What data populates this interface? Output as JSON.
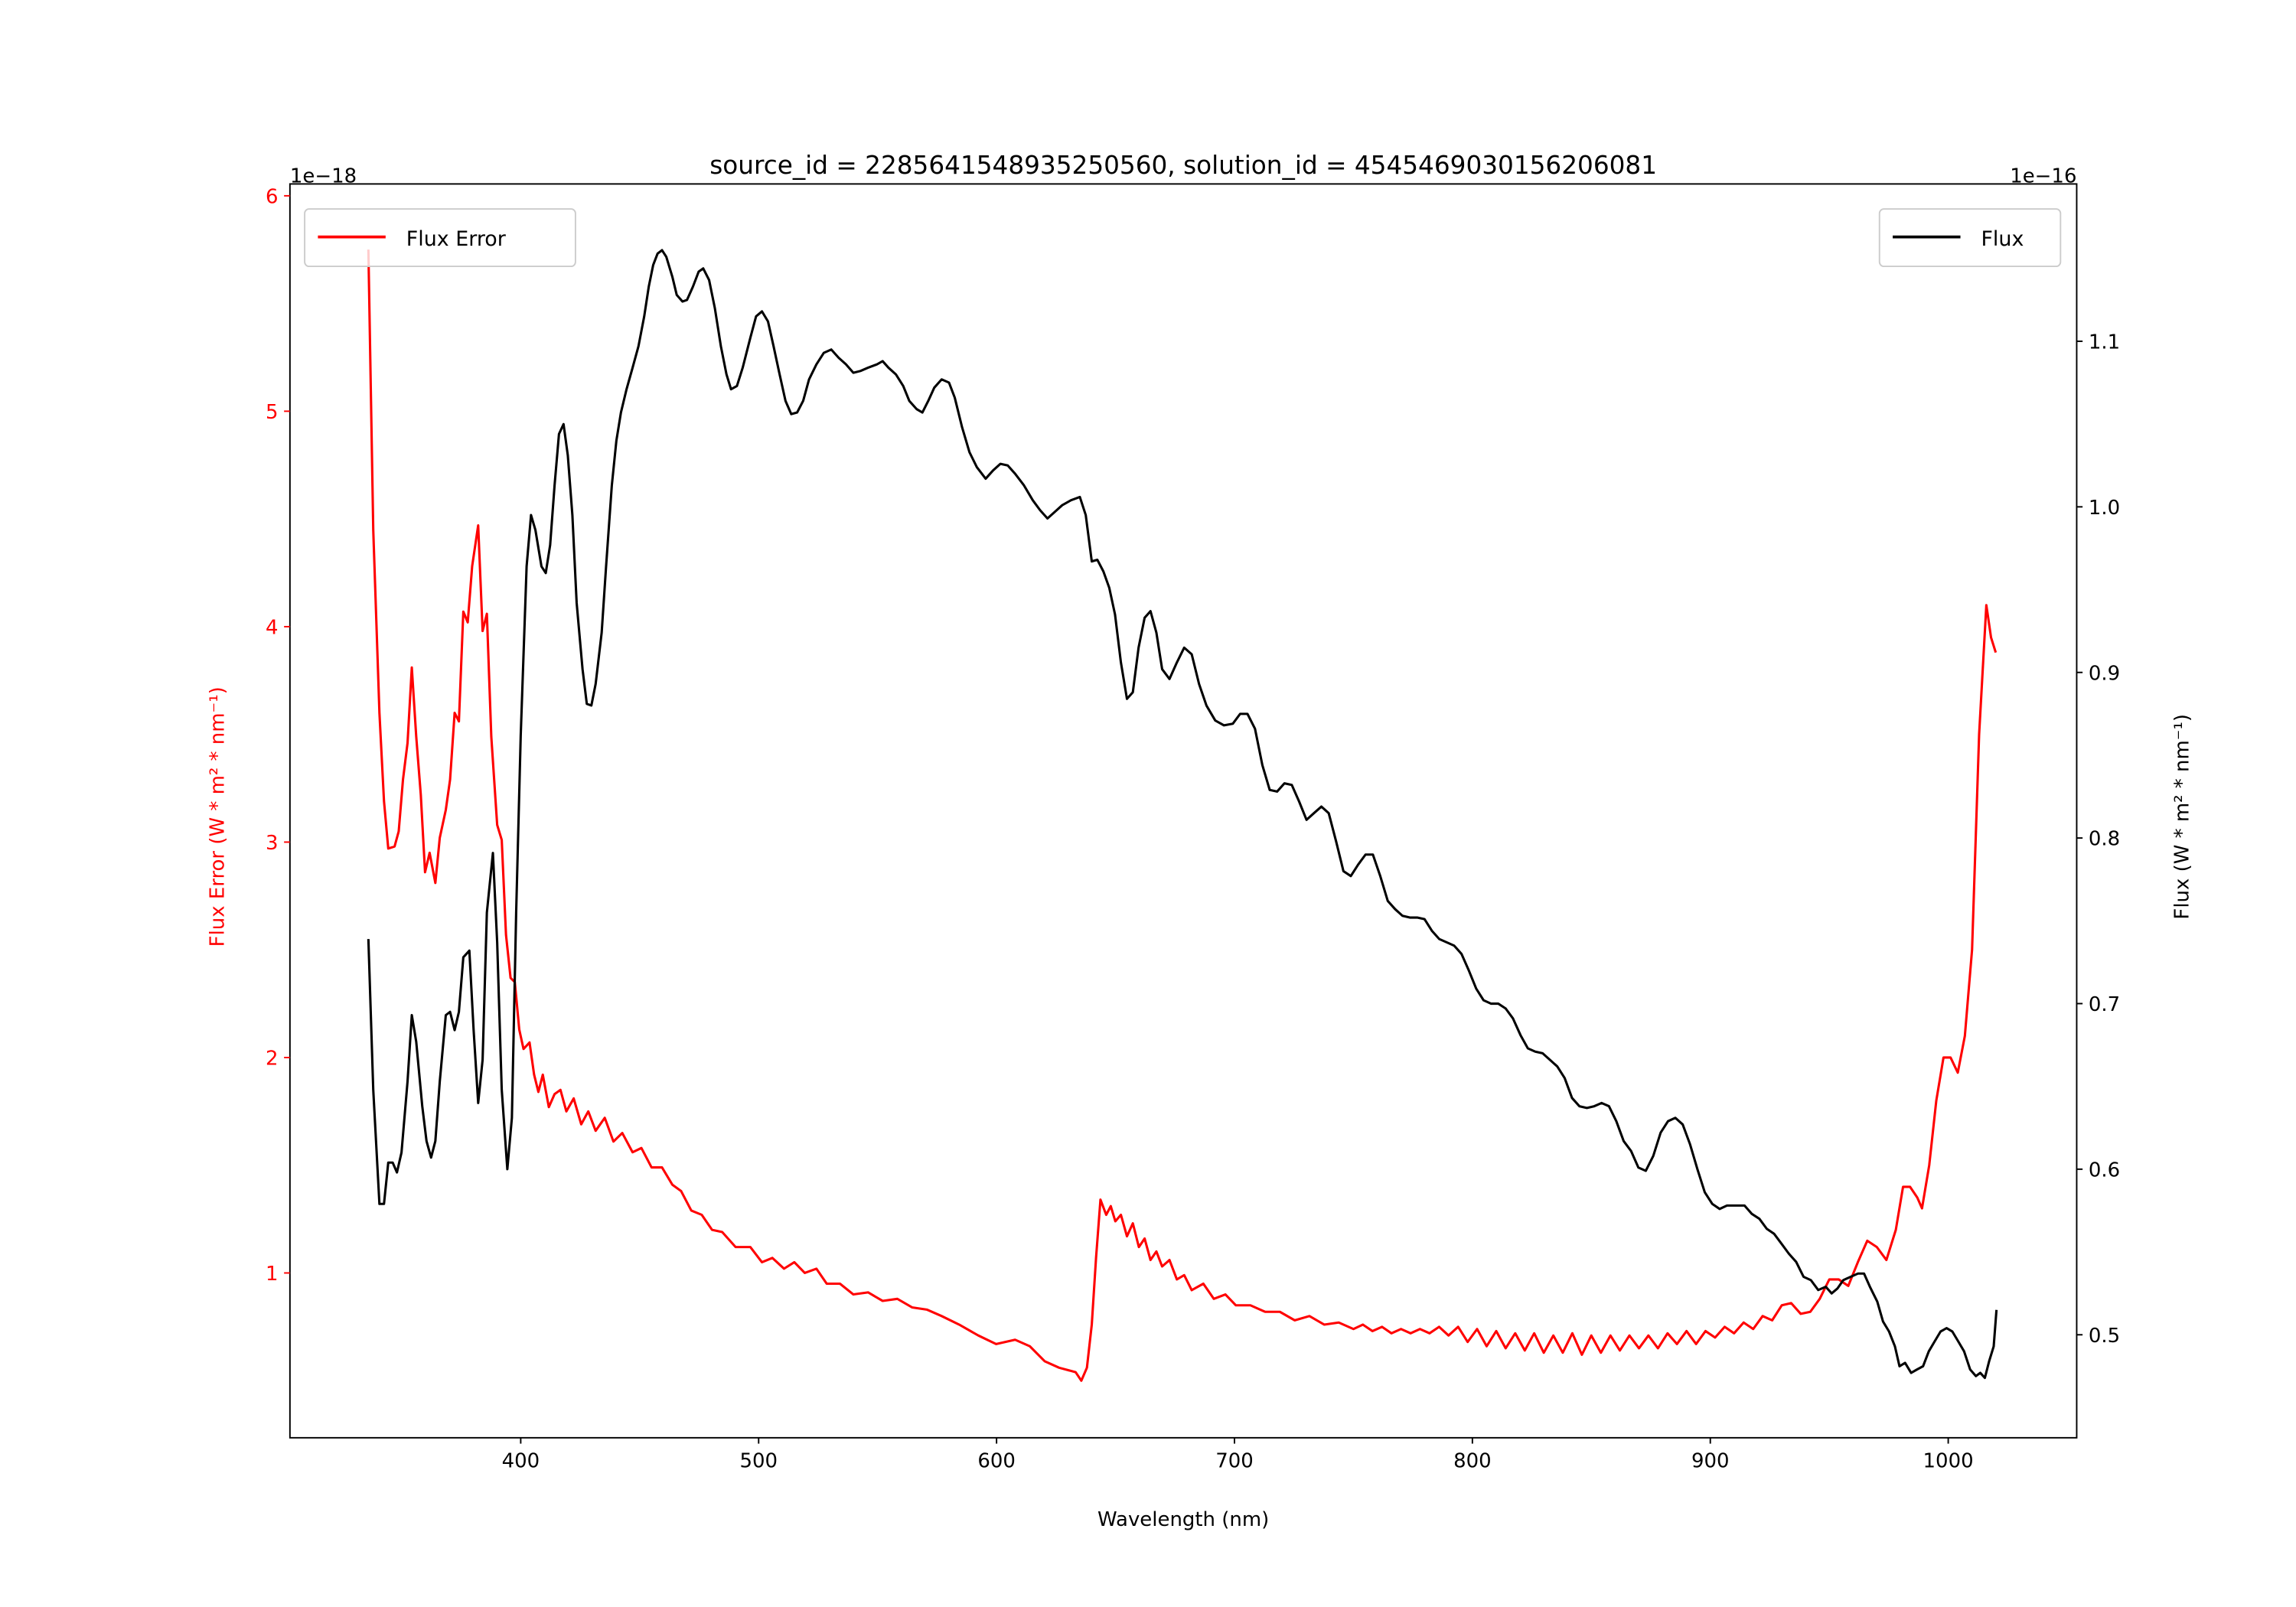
{
  "chart_data": {
    "type": "line",
    "title": "source_id = 2285641548935250560, solution_id = 4545469030156206081",
    "xlabel": "Wavelength (nm)",
    "xlim": [
      303,
      1054
    ],
    "xticks": [
      400,
      500,
      600,
      700,
      800,
      900,
      1000
    ],
    "grid": false,
    "left_axis": {
      "label": "Flux Error (W * m² * nm⁻¹)",
      "offset_text": "1e−18",
      "color": "#ff0000",
      "ylim": [
        0.235,
        6.055
      ],
      "ticks": [
        1,
        2,
        3,
        4,
        5,
        6
      ]
    },
    "right_axis": {
      "label": "Flux (W * m² * nm⁻¹)",
      "offset_text": "1e−16",
      "color": "#000000",
      "ylim": [
        0.4378,
        1.195
      ],
      "ticks": [
        0.5,
        0.6,
        0.7,
        0.8,
        0.9,
        1.0,
        1.1
      ]
    },
    "series": [
      {
        "name": "Flux Error",
        "axis": "left",
        "color": "#ff0000",
        "legend_position": "upper-left",
        "x": [
          336,
          338,
          340.6,
          342.5,
          344.3,
          347,
          348.7,
          350.5,
          352.4,
          354.2,
          356.1,
          358,
          359.8,
          361.7,
          364.1,
          366,
          368.5,
          370.3,
          372.2,
          374,
          375.9,
          377.7,
          379.6,
          382.1,
          384,
          385.8,
          387.6,
          390.1,
          392,
          393.8,
          395.7,
          397.5,
          399.4,
          401.2,
          403.7,
          405.6,
          407.4,
          409.3,
          411.8,
          414.2,
          416.7,
          419.2,
          422.3,
          425.4,
          428.4,
          431.5,
          435.3,
          439,
          442.7,
          447,
          450.7,
          455,
          459.4,
          463.7,
          467.4,
          471.7,
          476.1,
          480.4,
          484.7,
          490.3,
          496.5,
          501.4,
          505.8,
          510.7,
          515,
          519.4,
          524.3,
          528.6,
          534.2,
          539.8,
          546,
          552.1,
          558.3,
          564.5,
          570.7,
          576.9,
          584.3,
          592.3,
          599.8,
          607.8,
          614,
          620.2,
          626.3,
          633.2,
          635.6,
          638,
          640,
          641.8,
          643.7,
          646.1,
          648,
          649.9,
          652.3,
          654.8,
          657.3,
          659.8,
          662.2,
          664.7,
          667.2,
          669.6,
          672.7,
          675.8,
          678.9,
          682,
          686.9,
          691.3,
          696.2,
          700.6,
          706.7,
          712.9,
          719.1,
          725.3,
          731.5,
          737.7,
          743.8,
          750,
          754,
          758,
          762,
          766,
          770,
          774,
          778,
          782,
          786,
          790,
          794,
          798,
          802,
          806,
          810,
          814,
          818,
          822,
          826,
          830,
          834,
          838,
          842,
          846,
          850,
          854,
          858,
          862,
          866,
          870,
          874,
          878,
          882,
          886,
          890,
          894,
          898,
          902,
          906,
          910,
          914,
          918,
          922,
          926,
          930,
          934,
          938,
          942,
          946,
          950,
          954,
          958,
          962,
          966,
          970,
          974,
          978,
          981,
          984,
          987,
          989,
          992,
          995,
          998,
          1001,
          1004,
          1007,
          1010,
          1013,
          1016,
          1018,
          1020
        ],
        "y": [
          5.75,
          4.45,
          3.6,
          3.19,
          2.97,
          2.98,
          3.05,
          3.29,
          3.46,
          3.81,
          3.49,
          3.22,
          2.86,
          2.95,
          2.81,
          3.02,
          3.15,
          3.29,
          3.6,
          3.56,
          4.07,
          4.02,
          4.28,
          4.47,
          3.98,
          4.06,
          3.49,
          3.08,
          3.01,
          2.57,
          2.37,
          2.35,
          2.13,
          2.04,
          2.07,
          1.92,
          1.84,
          1.92,
          1.77,
          1.83,
          1.85,
          1.75,
          1.81,
          1.69,
          1.75,
          1.66,
          1.72,
          1.61,
          1.65,
          1.56,
          1.58,
          1.49,
          1.49,
          1.41,
          1.38,
          1.29,
          1.27,
          1.2,
          1.19,
          1.12,
          1.12,
          1.05,
          1.07,
          1.02,
          1.05,
          1.0,
          1.02,
          0.95,
          0.95,
          0.9,
          0.91,
          0.87,
          0.88,
          0.84,
          0.83,
          0.8,
          0.76,
          0.71,
          0.67,
          0.69,
          0.66,
          0.59,
          0.56,
          0.54,
          0.5,
          0.56,
          0.76,
          1.07,
          1.34,
          1.27,
          1.31,
          1.24,
          1.27,
          1.17,
          1.23,
          1.12,
          1.16,
          1.06,
          1.1,
          1.03,
          1.06,
          0.97,
          0.99,
          0.92,
          0.95,
          0.88,
          0.9,
          0.85,
          0.85,
          0.82,
          0.82,
          0.78,
          0.8,
          0.76,
          0.77,
          0.74,
          0.76,
          0.73,
          0.75,
          0.72,
          0.74,
          0.72,
          0.74,
          0.72,
          0.75,
          0.71,
          0.75,
          0.68,
          0.74,
          0.66,
          0.73,
          0.65,
          0.72,
          0.64,
          0.72,
          0.63,
          0.71,
          0.63,
          0.72,
          0.62,
          0.71,
          0.63,
          0.71,
          0.64,
          0.71,
          0.65,
          0.71,
          0.65,
          0.72,
          0.67,
          0.73,
          0.67,
          0.73,
          0.7,
          0.75,
          0.72,
          0.77,
          0.74,
          0.8,
          0.78,
          0.85,
          0.86,
          0.81,
          0.82,
          0.88,
          0.97,
          0.97,
          0.94,
          1.05,
          1.15,
          1.12,
          1.06,
          1.2,
          1.4,
          1.4,
          1.35,
          1.3,
          1.5,
          1.8,
          2.0,
          2.0,
          1.93,
          2.1,
          2.5,
          3.5,
          4.1,
          3.95,
          3.88
        ]
      },
      {
        "name": "Flux",
        "axis": "right",
        "color": "#000000",
        "legend_position": "upper-right",
        "x": [
          336,
          338,
          340.6,
          342.5,
          344.3,
          346.2,
          348,
          349.9,
          352.4,
          354.2,
          356.1,
          358.6,
          360.4,
          362.3,
          364.1,
          366,
          368.5,
          370.3,
          372.2,
          374,
          375.9,
          378.4,
          380.2,
          382.1,
          384,
          385.8,
          388.3,
          390.1,
          392,
          394.4,
          396.3,
          398.1,
          400,
          402.5,
          404.3,
          406.2,
          408.7,
          410.5,
          412.4,
          414.2,
          416.1,
          418,
          419.8,
          421.7,
          423.5,
          426,
          427.8,
          429.7,
          431.5,
          434,
          435.9,
          438.3,
          440.2,
          442.1,
          444.5,
          447,
          449.5,
          451.9,
          453.8,
          455.7,
          457.5,
          459.4,
          461.2,
          463.7,
          465.6,
          468,
          469.9,
          472.4,
          474.8,
          476.7,
          479.2,
          481.6,
          484.1,
          486.5,
          488.4,
          490.9,
          493.3,
          496.5,
          498.9,
          501.4,
          503.9,
          506.3,
          508.8,
          511.3,
          513.7,
          516.2,
          518.7,
          521.2,
          524.3,
          527.4,
          530.5,
          533.6,
          536.7,
          539.8,
          542.8,
          545.9,
          549.7,
          552.1,
          554.6,
          557.7,
          560.8,
          563.3,
          566.4,
          568.8,
          571.3,
          573.8,
          576.9,
          580,
          582.4,
          585.5,
          588.6,
          591.7,
          595.4,
          598.5,
          601.6,
          604.7,
          607.8,
          611.5,
          615.2,
          618.3,
          621.4,
          624.5,
          627.6,
          631.3,
          635,
          637.5,
          640,
          642.4,
          644.9,
          647.4,
          649.8,
          652.3,
          654.8,
          657.3,
          659.7,
          662.2,
          664.7,
          667.2,
          669.6,
          672.7,
          675.8,
          678.9,
          682,
          685.1,
          688.2,
          691.9,
          695.6,
          699.3,
          702.4,
          705.5,
          708.6,
          711.7,
          714.8,
          717.9,
          721,
          724.1,
          727.2,
          730.3,
          733.4,
          736.5,
          739.6,
          742.7,
          745.8,
          748.9,
          752,
          755.1,
          758.2,
          761.3,
          764.4,
          767.5,
          770.6,
          773.7,
          776.8,
          779.9,
          783,
          786.1,
          789.2,
          792.3,
          795.4,
          798.5,
          801.6,
          804.7,
          807.8,
          810.9,
          814,
          817.1,
          820.2,
          823.3,
          826.4,
          829.5,
          832.6,
          835.7,
          838.8,
          841.9,
          845,
          848.1,
          851.2,
          854.3,
          857.4,
          860.5,
          863.6,
          866.7,
          869.8,
          872.9,
          876,
          879.1,
          882.2,
          885.3,
          888.4,
          891.5,
          894.6,
          897.7,
          900.8,
          903.9,
          907,
          910.1,
          914.4,
          917.5,
          920.6,
          923.7,
          926.8,
          929.9,
          933,
          936.1,
          939.2,
          942.3,
          945.4,
          948.5,
          951,
          953.5,
          955.9,
          959,
          962.1,
          964.6,
          967.1,
          970.2,
          972.6,
          975.1,
          977.6,
          979.5,
          981.9,
          984.4,
          986.9,
          989.4,
          991.8,
          994.3,
          996.8,
          999.3,
          1001.7,
          1004.2,
          1006.7,
          1009.2,
          1011.6,
          1013.5,
          1015.4,
          1017.2,
          1019.1,
          1020.3
        ],
        "y": [
          0.739,
          0.648,
          0.579,
          0.579,
          0.604,
          0.604,
          0.598,
          0.61,
          0.653,
          0.693,
          0.677,
          0.638,
          0.617,
          0.607,
          0.617,
          0.653,
          0.693,
          0.695,
          0.684,
          0.695,
          0.728,
          0.732,
          0.684,
          0.64,
          0.666,
          0.755,
          0.791,
          0.737,
          0.648,
          0.6,
          0.631,
          0.755,
          0.862,
          0.964,
          0.995,
          0.986,
          0.964,
          0.96,
          0.977,
          1.013,
          1.044,
          1.05,
          1.031,
          0.995,
          0.942,
          0.902,
          0.881,
          0.88,
          0.893,
          0.924,
          0.964,
          1.013,
          1.04,
          1.057,
          1.071,
          1.084,
          1.097,
          1.115,
          1.133,
          1.146,
          1.153,
          1.155,
          1.151,
          1.139,
          1.128,
          1.124,
          1.125,
          1.133,
          1.142,
          1.144,
          1.137,
          1.12,
          1.097,
          1.08,
          1.071,
          1.073,
          1.084,
          1.102,
          1.115,
          1.118,
          1.112,
          1.097,
          1.08,
          1.064,
          1.056,
          1.057,
          1.064,
          1.077,
          1.086,
          1.093,
          1.095,
          1.09,
          1.086,
          1.081,
          1.082,
          1.084,
          1.086,
          1.088,
          1.084,
          1.08,
          1.073,
          1.064,
          1.059,
          1.057,
          1.064,
          1.072,
          1.077,
          1.075,
          1.066,
          1.048,
          1.033,
          1.024,
          1.017,
          1.022,
          1.026,
          1.025,
          1.02,
          1.013,
          1.004,
          0.998,
          0.993,
          0.997,
          1.001,
          1.004,
          1.006,
          0.995,
          0.967,
          0.968,
          0.961,
          0.951,
          0.935,
          0.906,
          0.884,
          0.888,
          0.915,
          0.933,
          0.937,
          0.924,
          0.902,
          0.896,
          0.906,
          0.915,
          0.911,
          0.893,
          0.88,
          0.871,
          0.868,
          0.869,
          0.875,
          0.875,
          0.866,
          0.844,
          0.829,
          0.828,
          0.833,
          0.832,
          0.822,
          0.811,
          0.815,
          0.819,
          0.815,
          0.798,
          0.78,
          0.777,
          0.784,
          0.79,
          0.79,
          0.777,
          0.762,
          0.757,
          0.753,
          0.752,
          0.752,
          0.751,
          0.744,
          0.739,
          0.737,
          0.735,
          0.73,
          0.72,
          0.709,
          0.702,
          0.7,
          0.7,
          0.697,
          0.691,
          0.681,
          0.673,
          0.671,
          0.67,
          0.666,
          0.662,
          0.655,
          0.643,
          0.638,
          0.637,
          0.638,
          0.64,
          0.638,
          0.629,
          0.617,
          0.611,
          0.601,
          0.599,
          0.608,
          0.622,
          0.629,
          0.631,
          0.627,
          0.615,
          0.6,
          0.586,
          0.579,
          0.576,
          0.578,
          0.578,
          0.578,
          0.573,
          0.57,
          0.564,
          0.561,
          0.555,
          0.549,
          0.544,
          0.535,
          0.533,
          0.527,
          0.529,
          0.525,
          0.528,
          0.533,
          0.535,
          0.537,
          0.537,
          0.529,
          0.52,
          0.508,
          0.502,
          0.493,
          0.481,
          0.483,
          0.477,
          0.479,
          0.481,
          0.49,
          0.496,
          0.502,
          0.504,
          0.502,
          0.496,
          0.49,
          0.479,
          0.475,
          0.477,
          0.474,
          0.484,
          0.493,
          0.515
        ]
      }
    ]
  }
}
